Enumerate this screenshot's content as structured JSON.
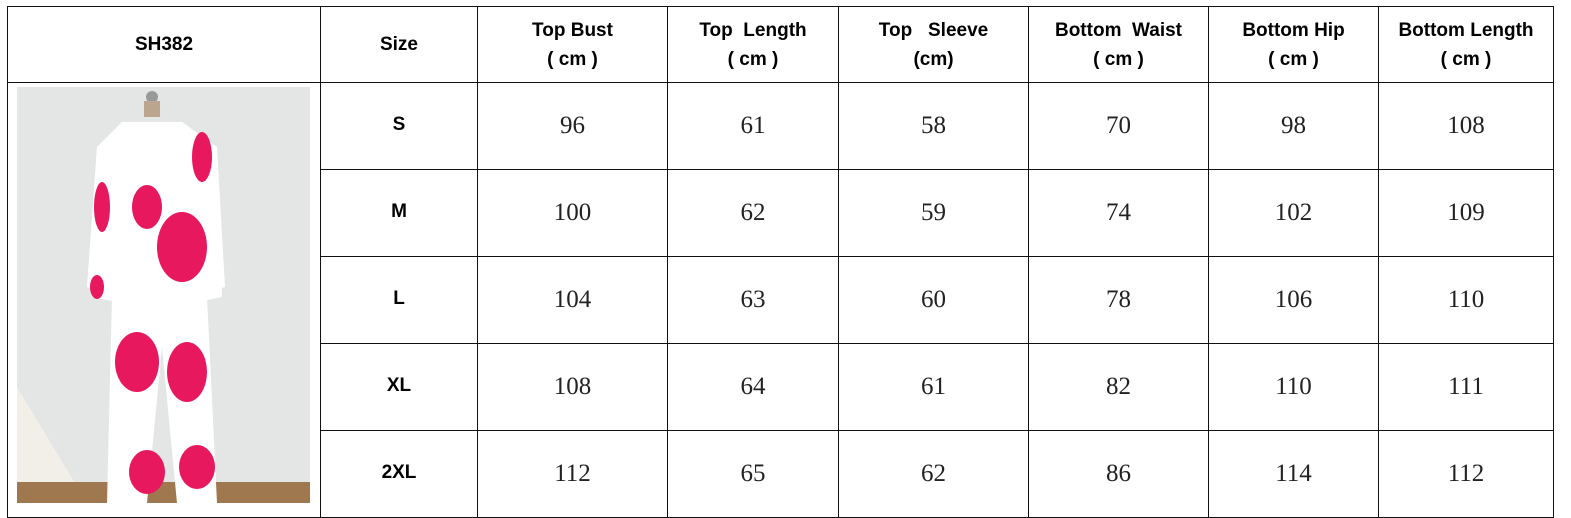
{
  "table": {
    "headers": [
      "SH382",
      "Size",
      "Top Bust\n( cm )",
      "Top  Length\n( cm )",
      "Top   Sleeve\n(cm)",
      "Bottom  Waist\n( cm )",
      "Bottom Hip\n( cm )",
      "Bottom Length\n( cm )"
    ],
    "header_lines": [
      [
        "SH382"
      ],
      [
        "Size"
      ],
      [
        "Top Bust",
        "( cm )"
      ],
      [
        "Top  Length",
        "( cm )"
      ],
      [
        "Top   Sleeve",
        "(cm)"
      ],
      [
        "Bottom  Waist",
        "( cm )"
      ],
      [
        "Bottom Hip",
        "( cm )"
      ],
      [
        "Bottom Length",
        "( cm )"
      ]
    ],
    "rows": [
      {
        "size": "S",
        "values": [
          "96",
          "61",
          "58",
          "70",
          "98",
          "108"
        ]
      },
      {
        "size": "M",
        "values": [
          "100",
          "62",
          "59",
          "74",
          "102",
          "109"
        ]
      },
      {
        "size": "L",
        "values": [
          "104",
          "63",
          "60",
          "78",
          "106",
          "110"
        ]
      },
      {
        "size": "XL",
        "values": [
          "108",
          "64",
          "61",
          "82",
          "110",
          "111"
        ]
      },
      {
        "size": "2XL",
        "values": [
          "112",
          "65",
          "62",
          "86",
          "114",
          "112"
        ]
      }
    ]
  },
  "photo": {
    "subject": "product-photo",
    "colors": {
      "print": "#e8185f",
      "fabric": "#ffffff",
      "backdrop": "#e4e6e6"
    }
  }
}
